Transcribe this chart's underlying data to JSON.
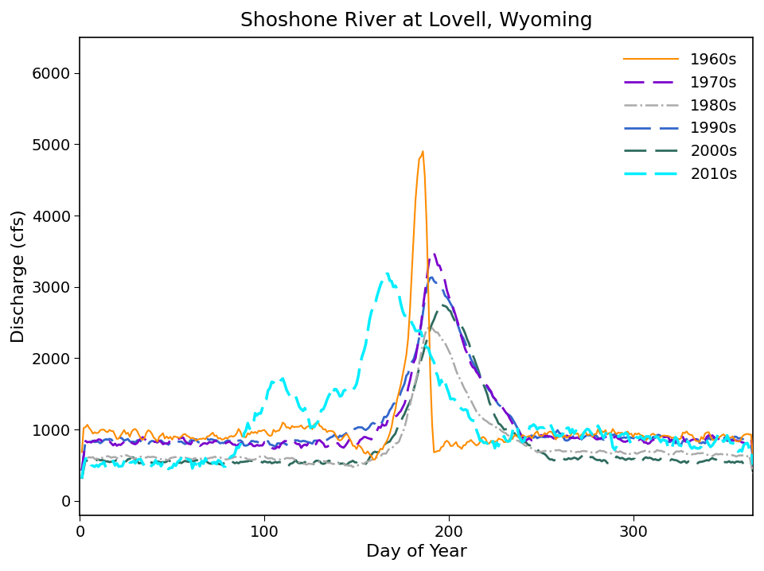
{
  "title": "Shoshone River at Lovell, Wyoming",
  "xlabel": "Day of Year",
  "ylabel": "Discharge (cfs)",
  "xlim": [
    0,
    365
  ],
  "ylim": [
    -200,
    6500
  ],
  "yticks": [
    0,
    1000,
    2000,
    3000,
    4000,
    5000,
    6000
  ],
  "xticks": [
    0,
    100,
    200,
    300
  ],
  "series": {
    "1960s": {
      "color": "#FF8C00",
      "lw": 1.5,
      "ls": "solid"
    },
    "1970s": {
      "color": "#7B00CC",
      "lw": 2.0,
      "ls": "dashed"
    },
    "1980s": {
      "color": "#AAAAAA",
      "lw": 1.8,
      "ls": "dashdot"
    },
    "1990s": {
      "color": "#3366CC",
      "lw": 2.0,
      "ls": "dashed"
    },
    "2000s": {
      "color": "#2E6B5E",
      "lw": 2.0,
      "ls": "dashed"
    },
    "2010s": {
      "color": "#00EEFF",
      "lw": 2.5,
      "ls": "dashed"
    }
  },
  "legend_loc": "upper right",
  "background_color": "#FFFFFF",
  "title_fontsize": 18,
  "label_fontsize": 16,
  "tick_fontsize": 14,
  "legend_fontsize": 14
}
